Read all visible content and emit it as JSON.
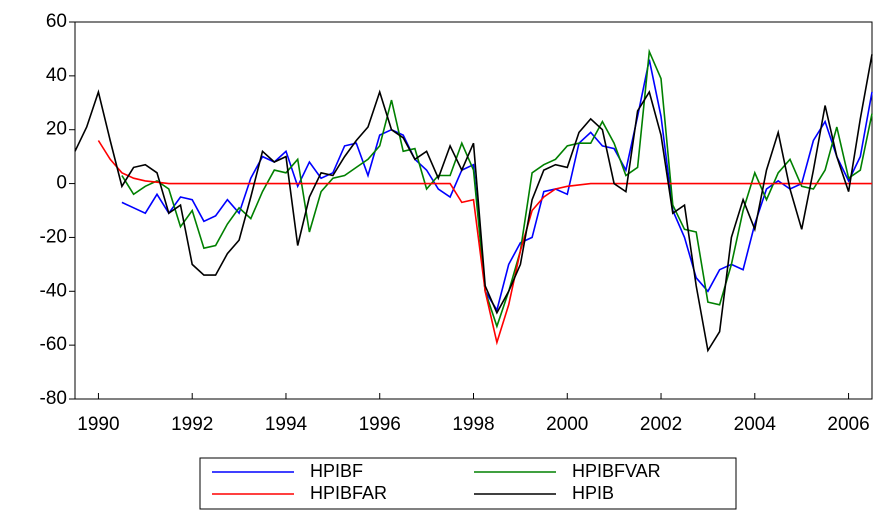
{
  "chart_data": {
    "type": "line",
    "x": [
      1989.5,
      1989.75,
      1990,
      1990.25,
      1990.5,
      1990.75,
      1991,
      1991.25,
      1991.5,
      1991.75,
      1992,
      1992.25,
      1992.5,
      1992.75,
      1993,
      1993.25,
      1993.5,
      1993.75,
      1994,
      1994.25,
      1994.5,
      1994.75,
      1995,
      1995.25,
      1995.5,
      1995.75,
      1996,
      1996.25,
      1996.5,
      1996.75,
      1997,
      1997.25,
      1997.5,
      1997.75,
      1998,
      1998.25,
      1998.5,
      1998.75,
      1999,
      1999.25,
      1999.5,
      1999.75,
      2000,
      2000.25,
      2000.5,
      2000.75,
      2001,
      2001.25,
      2001.5,
      2001.75,
      2002,
      2002.25,
      2002.5,
      2002.75,
      2003,
      2003.25,
      2003.5,
      2003.75,
      2004,
      2004.25,
      2004.5,
      2004.75,
      2005,
      2005.25,
      2005.5,
      2005.75,
      2006,
      2006.25,
      2006.5
    ],
    "series": [
      {
        "name": "HPIBF",
        "color": "#0000ff",
        "values": [
          null,
          null,
          null,
          null,
          -7,
          -9,
          -11,
          -4,
          -11,
          -5,
          -6,
          -14,
          -12,
          -6,
          -11,
          2,
          10,
          8,
          12,
          -1,
          8,
          2,
          4,
          14,
          15,
          3,
          18,
          20,
          18,
          9,
          5,
          -2,
          -5,
          5,
          7,
          -40,
          -47,
          -30,
          -22,
          -20,
          -3,
          -2,
          -4,
          15,
          19,
          14,
          13,
          5,
          25,
          46,
          25,
          -10,
          -20,
          -35,
          -40,
          -32,
          -30,
          -32,
          -15,
          -2,
          1,
          -2,
          0,
          16,
          23,
          10,
          1,
          10,
          34
        ]
      },
      {
        "name": "HPIBFVAR",
        "color": "#008000",
        "values": [
          null,
          null,
          null,
          null,
          3,
          -4,
          -1,
          1,
          -2,
          -16,
          -10,
          -24,
          -23,
          -15,
          -9,
          -13,
          -3,
          5,
          4,
          9,
          -18,
          -3,
          2,
          3,
          6,
          9,
          14,
          31,
          12,
          13,
          -2,
          3,
          3,
          15,
          5,
          -40,
          -53,
          -40,
          -25,
          4,
          7,
          9,
          14,
          15,
          15,
          23,
          15,
          3,
          6,
          49,
          39,
          -8,
          -17,
          -18,
          -44,
          -45,
          -30,
          -10,
          4,
          -6,
          4,
          9,
          -1,
          -2,
          5,
          21,
          2,
          5,
          26
        ]
      },
      {
        "name": "HPIBFAR",
        "color": "#ff0000",
        "values": [
          null,
          null,
          16,
          9,
          4,
          2,
          1,
          0.5,
          0,
          0,
          0,
          0,
          0,
          0,
          0,
          0,
          0,
          0,
          0,
          0,
          0,
          0,
          0,
          0,
          0,
          0,
          0,
          0,
          0,
          0,
          0,
          0,
          0,
          -7,
          -6,
          -40,
          -59,
          -45,
          -25,
          -10,
          -5,
          -2,
          -1,
          -0.5,
          0,
          0,
          0,
          0,
          0,
          0,
          0,
          0,
          0,
          0,
          0,
          0,
          0,
          0,
          0,
          0,
          0,
          0,
          0,
          0,
          0,
          0,
          0,
          0,
          0
        ]
      },
      {
        "name": "HPIB",
        "color": "#000000",
        "values": [
          12,
          21,
          34,
          16,
          -1,
          6,
          7,
          4,
          -11,
          -8,
          -30,
          -34,
          -34,
          -26,
          -21,
          -5,
          12,
          8,
          10,
          -23,
          -5,
          4,
          3,
          10,
          16,
          21,
          34,
          20,
          17,
          9,
          12,
          2,
          14,
          5,
          15,
          -38,
          -48,
          -40,
          -30,
          -6,
          5,
          7,
          6,
          19,
          24,
          20,
          0,
          -3,
          27,
          34,
          18,
          -11,
          -8,
          -38,
          -62,
          -55,
          -20,
          -6,
          -17,
          5,
          19,
          -2,
          -17,
          5,
          29,
          10,
          -3,
          24,
          48
        ]
      }
    ],
    "xlim": [
      1989.5,
      2006.5
    ],
    "xticks": [
      1990,
      1992,
      1994,
      1996,
      1998,
      2000,
      2002,
      2004,
      2006
    ],
    "ylim": [
      -80,
      60
    ],
    "yticks": [
      -80,
      -60,
      -40,
      -20,
      0,
      20,
      40,
      60
    ]
  }
}
